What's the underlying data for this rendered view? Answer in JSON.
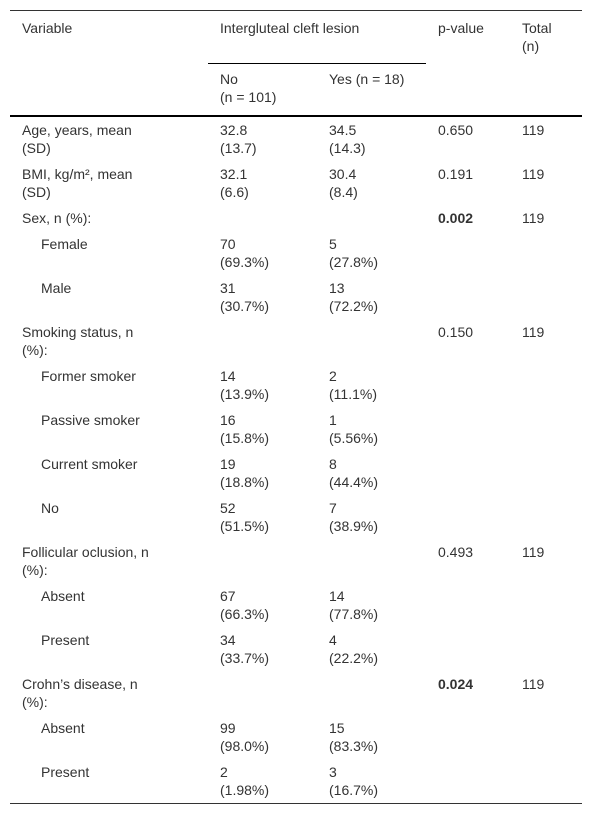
{
  "table": {
    "header": {
      "variable": "Variable",
      "group": "Intergluteal cleft lesion",
      "p": "p-value",
      "total": "Total\n(n)",
      "no": "No\n(n = 101)",
      "yes": "Yes (n = 18)"
    },
    "rows": [
      {
        "variable": "Age, years, mean\n(SD)",
        "indent": false,
        "no": "32.8\n(13.7)",
        "yes": "34.5\n(14.3)",
        "p": "0.650",
        "p_bold": false,
        "total": "119"
      },
      {
        "variable": "BMI, kg/m², mean\n(SD)",
        "indent": false,
        "no": "32.1\n(6.6)",
        "yes": "30.4\n(8.4)",
        "p": "0.191",
        "p_bold": false,
        "total": "119"
      },
      {
        "variable": "Sex, n (%):",
        "indent": false,
        "no": null,
        "yes": null,
        "p": "0.002",
        "p_bold": true,
        "total": "119"
      },
      {
        "variable": "Female",
        "indent": true,
        "no": "70\n(69.3%)",
        "yes": "5\n(27.8%)",
        "p": null,
        "p_bold": false,
        "total": null
      },
      {
        "variable": "Male",
        "indent": true,
        "no": "31\n(30.7%)",
        "yes": "13\n(72.2%)",
        "p": null,
        "p_bold": false,
        "total": null
      },
      {
        "variable": "Smoking status, n\n(%):",
        "indent": false,
        "no": null,
        "yes": null,
        "p": "0.150",
        "p_bold": false,
        "total": "119"
      },
      {
        "variable": "Former smoker",
        "indent": true,
        "no": "14\n(13.9%)",
        "yes": "2\n(11.1%)",
        "p": null,
        "p_bold": false,
        "total": null
      },
      {
        "variable": "Passive smoker",
        "indent": true,
        "no": "16\n(15.8%)",
        "yes": "1\n(5.56%)",
        "p": null,
        "p_bold": false,
        "total": null
      },
      {
        "variable": "Current smoker",
        "indent": true,
        "no": "19\n(18.8%)",
        "yes": "8\n(44.4%)",
        "p": null,
        "p_bold": false,
        "total": null
      },
      {
        "variable": "No",
        "indent": true,
        "no": "52\n(51.5%)",
        "yes": "7\n(38.9%)",
        "p": null,
        "p_bold": false,
        "total": null
      },
      {
        "variable": "Follicular oclusion, n\n(%):",
        "indent": false,
        "no": null,
        "yes": null,
        "p": "0.493",
        "p_bold": false,
        "total": "119"
      },
      {
        "variable": "Absent",
        "indent": true,
        "no": "67\n(66.3%)",
        "yes": "14\n(77.8%)",
        "p": null,
        "p_bold": false,
        "total": null
      },
      {
        "variable": "Present",
        "indent": true,
        "no": "34\n(33.7%)",
        "yes": "4\n(22.2%)",
        "p": null,
        "p_bold": false,
        "total": null
      },
      {
        "variable": "Crohn’s disease, n\n(%):",
        "indent": false,
        "no": null,
        "yes": null,
        "p": "0.024",
        "p_bold": true,
        "total": "119"
      },
      {
        "variable": "Absent",
        "indent": true,
        "no": "99\n(98.0%)",
        "yes": "15\n(83.3%)",
        "p": null,
        "p_bold": false,
        "total": null
      },
      {
        "variable": "Present",
        "indent": true,
        "no": "2\n(1.98%)",
        "yes": "3\n(16.7%)",
        "p": null,
        "p_bold": false,
        "total": null
      }
    ]
  }
}
